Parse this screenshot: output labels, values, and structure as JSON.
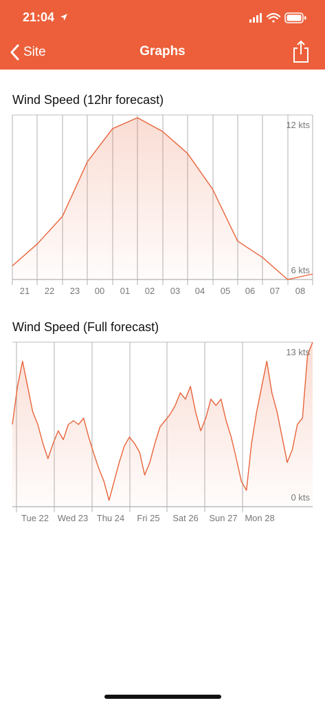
{
  "status_bar": {
    "time": "21:04"
  },
  "nav": {
    "back_label": "Site",
    "title": "Graphs"
  },
  "colors": {
    "accent": "#ec5f3a",
    "line": "#e8633a"
  },
  "charts": [
    {
      "title": "Wind Speed (12hr forecast)",
      "chart_data": {
        "type": "area",
        "title": "Wind Speed (12hr forecast)",
        "x_labels": [
          "21",
          "22",
          "23",
          "00",
          "01",
          "02",
          "03",
          "04",
          "05",
          "06",
          "07",
          "08"
        ],
        "y_max_label": "12 kts",
        "y_min_label": "6 kts",
        "ylim": [
          6,
          12
        ],
        "series": [
          {
            "values": [
              6.5,
              7.3,
              8.3,
              10.3,
              11.5,
              11.9,
              11.4,
              10.6,
              9.3,
              7.4,
              6.8,
              5.7,
              6.2
            ]
          }
        ]
      }
    },
    {
      "title": "Wind Speed (Full forecast)",
      "chart_data": {
        "type": "area",
        "title": "Wind Speed (Full forecast)",
        "x_labels": [
          "Tue 22",
          "Wed 23",
          "Thu 24",
          "Fri 25",
          "Sat 26",
          "Sun 27",
          "Mon 28"
        ],
        "y_max_label": "13 kts",
        "y_min_label": "0 kts",
        "ylim": [
          0,
          13
        ],
        "series": [
          {
            "values": [
              6.5,
              9.5,
              11.5,
              9.5,
              7.5,
              6.5,
              5.0,
              3.8,
              5.0,
              6.0,
              5.3,
              6.5,
              6.8,
              6.5,
              7.0,
              5.5,
              4.2,
              3.0,
              2.0,
              0.5,
              2.0,
              3.5,
              4.8,
              5.5,
              5.0,
              4.3,
              2.5,
              3.5,
              5.0,
              6.3,
              6.8,
              7.3,
              8.0,
              9.0,
              8.5,
              9.5,
              7.5,
              6.0,
              7.0,
              8.5,
              8.0,
              8.5,
              6.8,
              5.5,
              3.8,
              2.0,
              1.3,
              5.0,
              7.5,
              9.5,
              11.5,
              9.0,
              7.5,
              5.5,
              3.5,
              4.5,
              6.5,
              7.0,
              12.0,
              13.0
            ]
          }
        ]
      }
    }
  ]
}
